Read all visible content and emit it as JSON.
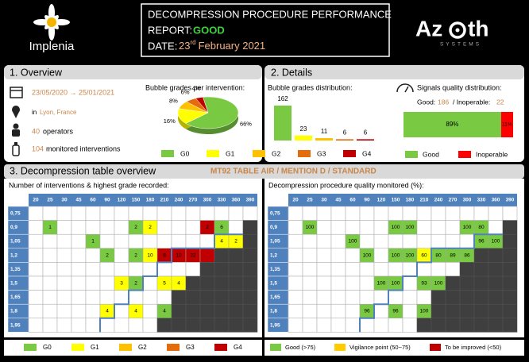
{
  "header": {
    "logo_left": "Implenia",
    "title": "DECOMPRESSION PROCEDURE PERFORMANCE",
    "report_label": "REPORT:",
    "report_value": "GOOD",
    "date_label": "DATE:",
    "date_day": "23",
    "date_suffix": "rd",
    "date_rest": "February 2021",
    "logo_right_a": "Az",
    "logo_right_b": "th",
    "logo_right_sub": "SYSTEMS"
  },
  "overview": {
    "title": "1. Overview",
    "period": "23/05/2020 → 25/01/2021",
    "location_prefix": "in",
    "location": "Lyon, France",
    "operators": 40,
    "operators_label": "operators",
    "interventions": 104,
    "interventions_label": "monitored interventions"
  },
  "details": {
    "title": "2. Details",
    "signals_good_label": "Good:",
    "signals_good": 186,
    "signals_separator": "/ Inoperable:",
    "signals_inoperable": 22
  },
  "chart_data": [
    {
      "type": "pie",
      "title": "Bubble grades per intervention:",
      "categories": [
        "G0",
        "G1",
        "G2",
        "G3",
        "G4"
      ],
      "values": [
        66,
        16,
        8,
        6,
        4
      ],
      "value_labels": [
        "66%",
        "16%",
        "8%",
        "6%",
        "4%"
      ],
      "colors": [
        "#7ac943",
        "#ffff00",
        "#ffc000",
        "#e46c0a",
        "#c00000"
      ]
    },
    {
      "type": "bar",
      "title": "Bubble grades distribution:",
      "categories": [
        null,
        null,
        null,
        null,
        null
      ],
      "values": [
        162,
        23,
        11,
        6,
        6
      ],
      "colors": [
        "#7ac943",
        "#ffff00",
        "#ffc000",
        "#e46c0a",
        "#c00000"
      ]
    },
    {
      "type": "stacked_hbar",
      "title": "Signals quality distribution:",
      "categories": [
        null
      ],
      "series": [
        {
          "name": "Good",
          "color": "#7ac943",
          "values": [
            89
          ],
          "value_labels": [
            "89%"
          ]
        },
        {
          "name": "Inoperable",
          "color": "#ff0000",
          "values": [
            11
          ],
          "value_labels": [
            "11%"
          ]
        }
      ]
    }
  ],
  "tables": {
    "title": "3. Decompression table overview",
    "subtitle": "MT92 TABLE AIR / MENTION D / STANDARD",
    "columns": [
      20,
      25,
      30,
      45,
      60,
      90,
      120,
      150,
      180,
      210,
      240,
      270,
      300,
      330,
      360,
      390
    ],
    "rows": [
      "0,75",
      "0,9",
      "1,05",
      "1,2",
      "1,35",
      "1,5",
      "1,65",
      "1,8",
      "1,95"
    ],
    "left": {
      "title": "Number of interventions & highest grade recorded:",
      "values": [
        [
          null,
          null,
          null,
          null,
          null,
          null,
          null,
          null,
          null,
          null,
          null,
          null,
          null,
          null,
          null,
          null
        ],
        [
          null,
          1,
          null,
          null,
          null,
          null,
          null,
          2,
          2,
          null,
          null,
          null,
          2,
          6,
          null,
          null
        ],
        [
          null,
          null,
          null,
          null,
          1,
          null,
          null,
          null,
          null,
          null,
          null,
          null,
          null,
          4,
          2,
          null
        ],
        [
          null,
          null,
          null,
          null,
          null,
          2,
          null,
          2,
          10,
          8,
          10,
          22,
          null,
          null,
          null,
          null
        ],
        [
          null,
          null,
          null,
          null,
          null,
          null,
          null,
          null,
          null,
          null,
          null,
          null,
          null,
          null,
          null,
          null
        ],
        [
          null,
          null,
          null,
          null,
          null,
          null,
          3,
          2,
          null,
          5,
          4,
          null,
          null,
          null,
          null,
          null
        ],
        [
          null,
          null,
          null,
          null,
          null,
          null,
          null,
          null,
          null,
          null,
          null,
          null,
          null,
          null,
          null,
          null
        ],
        [
          null,
          null,
          null,
          null,
          null,
          4,
          null,
          4,
          null,
          4,
          null,
          null,
          null,
          null,
          null,
          null
        ],
        [
          null,
          null,
          null,
          null,
          null,
          null,
          null,
          null,
          null,
          null,
          null,
          null,
          null,
          null,
          null,
          null
        ]
      ],
      "colors": [
        [
          null,
          null,
          null,
          null,
          null,
          null,
          null,
          null,
          null,
          null,
          null,
          null,
          null,
          null,
          null,
          null
        ],
        [
          null,
          "#7ac943",
          null,
          null,
          null,
          null,
          null,
          "#7ac943",
          "#ffff00",
          null,
          null,
          null,
          "#c00000",
          "#7ac943",
          null,
          null
        ],
        [
          null,
          null,
          null,
          null,
          "#7ac943",
          null,
          null,
          null,
          null,
          null,
          null,
          null,
          null,
          "#ffff00",
          "#ffff00",
          null
        ],
        [
          null,
          null,
          null,
          null,
          null,
          "#7ac943",
          null,
          "#7ac943",
          "#ffff00",
          "#c00000",
          "#c00000",
          "#c00000",
          "#c00000",
          null,
          null,
          null
        ],
        [
          null,
          null,
          null,
          null,
          null,
          null,
          null,
          null,
          null,
          null,
          null,
          null,
          null,
          null,
          null,
          null
        ],
        [
          null,
          null,
          null,
          null,
          null,
          null,
          "#ffff00",
          "#7ac943",
          null,
          "#ffff00",
          "#ffff00",
          null,
          null,
          null,
          null,
          null
        ],
        [
          null,
          null,
          null,
          null,
          null,
          null,
          null,
          null,
          null,
          null,
          null,
          null,
          null,
          null,
          null,
          null
        ],
        [
          null,
          null,
          null,
          null,
          null,
          "#ffff00",
          null,
          "#ffff00",
          null,
          "#7ac943",
          null,
          null,
          null,
          null,
          null,
          null
        ],
        [
          null,
          null,
          null,
          null,
          null,
          null,
          null,
          null,
          null,
          null,
          null,
          null,
          null,
          null,
          null,
          null
        ]
      ],
      "legend": [
        {
          "name": "G0",
          "color": "#7ac943"
        },
        {
          "name": "G1",
          "color": "#ffff00"
        },
        {
          "name": "G2",
          "color": "#ffc000"
        },
        {
          "name": "G3",
          "color": "#e46c0a"
        },
        {
          "name": "G4",
          "color": "#c00000"
        }
      ]
    },
    "right": {
      "title": "Decompression procedure quality monitored (%):",
      "values": [
        [
          null,
          null,
          null,
          null,
          null,
          null,
          null,
          null,
          null,
          null,
          null,
          null,
          null,
          null,
          null,
          null
        ],
        [
          null,
          100,
          null,
          null,
          null,
          null,
          null,
          100,
          100,
          null,
          null,
          null,
          100,
          80,
          null,
          null
        ],
        [
          null,
          null,
          null,
          null,
          100,
          null,
          null,
          null,
          null,
          null,
          null,
          null,
          null,
          96,
          100,
          null
        ],
        [
          null,
          null,
          null,
          null,
          null,
          100,
          null,
          100,
          100,
          60,
          80,
          89,
          86,
          null,
          null,
          null
        ],
        [
          null,
          null,
          null,
          null,
          null,
          null,
          null,
          null,
          null,
          null,
          null,
          null,
          null,
          null,
          null,
          null
        ],
        [
          null,
          null,
          null,
          null,
          null,
          null,
          100,
          100,
          null,
          93,
          100,
          null,
          null,
          null,
          null,
          null
        ],
        [
          null,
          null,
          null,
          null,
          null,
          null,
          null,
          null,
          null,
          null,
          null,
          null,
          null,
          null,
          null,
          null
        ],
        [
          null,
          null,
          null,
          null,
          null,
          96,
          null,
          96,
          null,
          100,
          null,
          null,
          null,
          null,
          null,
          null
        ],
        [
          null,
          null,
          null,
          null,
          null,
          null,
          null,
          null,
          null,
          null,
          null,
          null,
          null,
          null,
          null,
          null
        ]
      ],
      "colors": [
        [
          null,
          null,
          null,
          null,
          null,
          null,
          null,
          null,
          null,
          null,
          null,
          null,
          null,
          null,
          null,
          null
        ],
        [
          null,
          "#7ac943",
          null,
          null,
          null,
          null,
          null,
          "#7ac943",
          "#7ac943",
          null,
          null,
          null,
          "#7ac943",
          "#7ac943",
          null,
          null
        ],
        [
          null,
          null,
          null,
          null,
          "#7ac943",
          null,
          null,
          null,
          null,
          null,
          null,
          null,
          null,
          "#7ac943",
          "#7ac943",
          null
        ],
        [
          null,
          null,
          null,
          null,
          null,
          "#7ac943",
          null,
          "#7ac943",
          "#7ac943",
          "#ffff00",
          "#7ac943",
          "#7ac943",
          "#7ac943",
          null,
          null,
          null
        ],
        [
          null,
          null,
          null,
          null,
          null,
          null,
          null,
          null,
          null,
          null,
          null,
          null,
          null,
          null,
          null,
          null
        ],
        [
          null,
          null,
          null,
          null,
          null,
          null,
          "#7ac943",
          "#7ac943",
          null,
          "#7ac943",
          "#7ac943",
          null,
          null,
          null,
          null,
          null
        ],
        [
          null,
          null,
          null,
          null,
          null,
          null,
          null,
          null,
          null,
          null,
          null,
          null,
          null,
          null,
          null,
          null
        ],
        [
          null,
          null,
          null,
          null,
          null,
          "#7ac943",
          null,
          "#7ac943",
          null,
          "#7ac943",
          null,
          null,
          null,
          null,
          null,
          null
        ],
        [
          null,
          null,
          null,
          null,
          null,
          null,
          null,
          null,
          null,
          null,
          null,
          null,
          null,
          null,
          null,
          null
        ]
      ],
      "legend": [
        {
          "name": "Good (>75)",
          "color": "#7ac943"
        },
        {
          "name": "Vigilance point (50~75)",
          "color": "#ffcc00"
        },
        {
          "name": "To be improved (<50)",
          "color": "#c00000"
        }
      ]
    }
  }
}
